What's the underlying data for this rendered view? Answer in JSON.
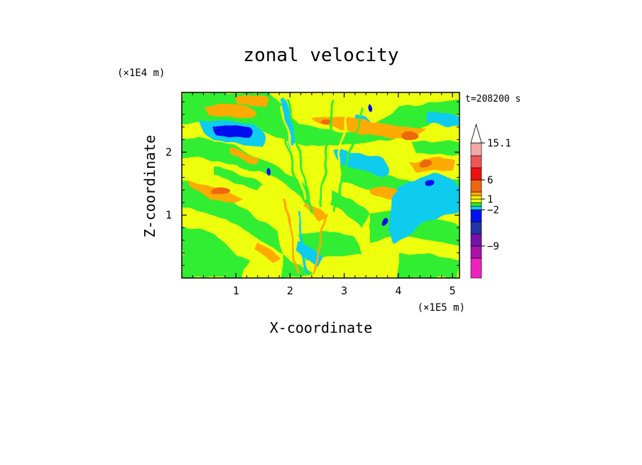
{
  "chart_data": {
    "type": "heatmap",
    "title": "zonal velocity",
    "xlabel": "X-coordinate",
    "ylabel": "Z-coordinate",
    "x_unit": "(×1E5 m)",
    "y_unit": "(×1E4 m)",
    "time_label": "t=208200 s",
    "xlim": [
      0,
      5.13
    ],
    "ylim": [
      0,
      2.95
    ],
    "x_ticks": [
      1,
      2,
      3,
      4,
      5
    ],
    "y_ticks": [
      1,
      2
    ],
    "grid": false,
    "colorbar": {
      "levels": [
        -15,
        -12,
        -9,
        -6,
        -3,
        -2,
        -1,
        0,
        1,
        2,
        3,
        6,
        9,
        12,
        15.1
      ],
      "colors": [
        "#ee22bb",
        "#aa11aa",
        "#7711aa",
        "#2233aa",
        "#0011ee",
        "#11ccee",
        "#33ee33",
        "#eeff11",
        "#ffee00",
        "#ffaa00",
        "#ee6611",
        "#ee1111",
        "#ee5555",
        "#f4a8a8"
      ],
      "labeled": [
        "15.1",
        "6",
        "1",
        "−2",
        "−9"
      ],
      "extend_max": true
    },
    "field_notes": "Approximate zonal velocity field: mostly yellow (0 to 1) and green (−1 to 0) bands; cyan (−2 to −1) streaks; orange/red maxima near x=1.0–1.5, z=2.6 and x=4.0, z=2.4; dark-blue minimum near x=0.6–1.2, z=2.4; V-shaped disturbed region centred at x≈2.3."
  }
}
